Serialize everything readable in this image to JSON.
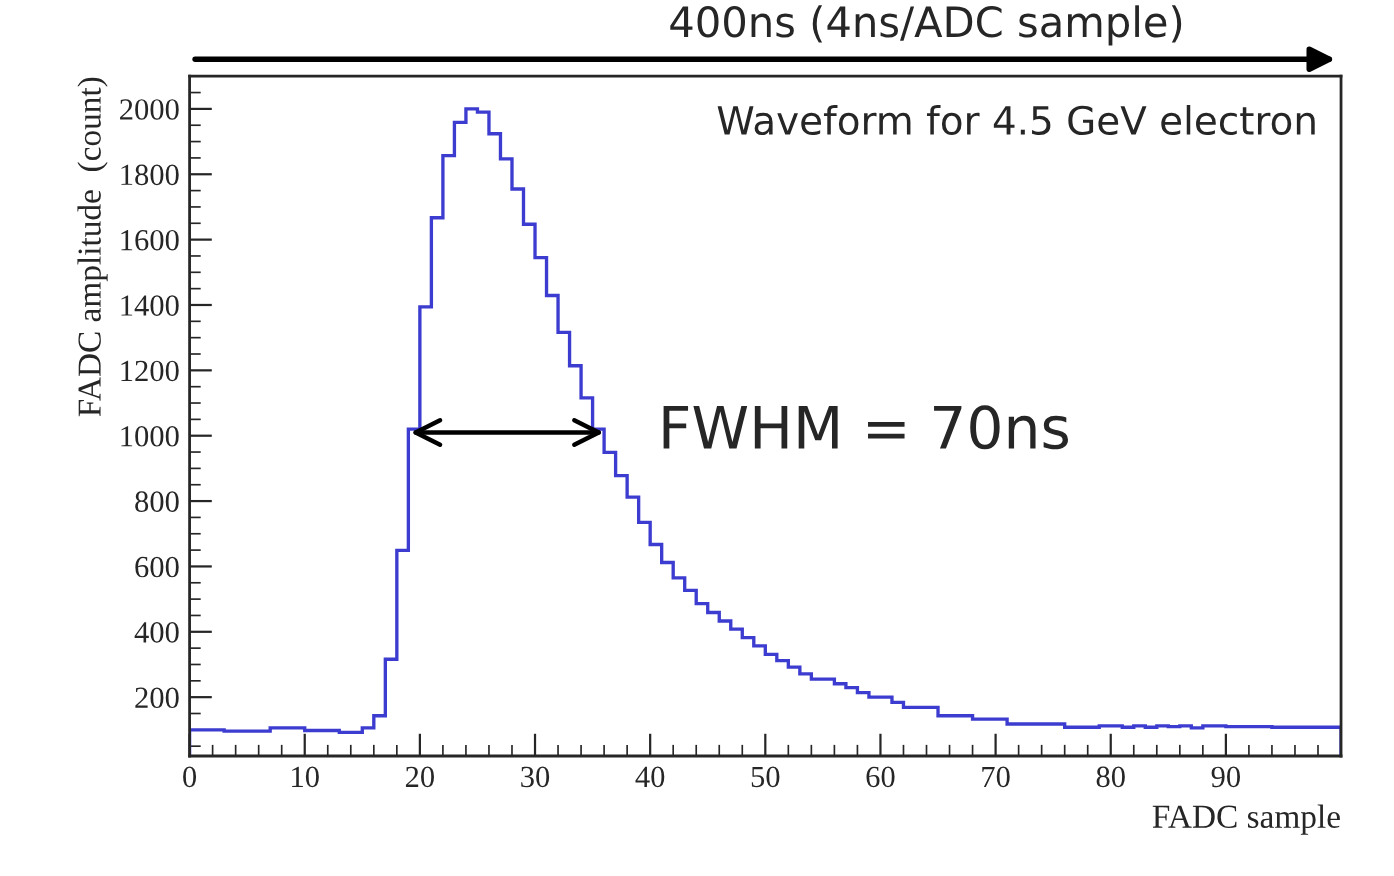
{
  "chart_data": {
    "type": "histogram",
    "xlabel": "FADC sample",
    "ylabel": "FADC amplitude  (count)",
    "annotations": [
      "400ns (4ns/ADC sample)",
      "Waveform for 4.5 GeV electron",
      {
        "text": "FWHM = 70ns",
        "x": 19.2,
        "y": 1010
      }
    ],
    "bins": [
      0,
      1,
      2,
      3,
      4,
      5,
      6,
      7,
      8,
      9,
      10,
      11,
      12,
      13,
      14,
      15,
      16,
      17,
      18,
      19,
      20,
      21,
      22,
      23,
      24,
      25,
      26,
      27,
      28,
      29,
      30,
      31,
      32,
      33,
      34,
      35,
      36,
      37,
      38,
      39,
      40,
      41,
      42,
      43,
      44,
      45,
      46,
      47,
      48,
      49,
      50,
      51,
      52,
      53,
      54,
      55,
      56,
      57,
      58,
      59,
      60,
      61,
      62,
      63,
      64,
      65,
      66,
      67,
      68,
      69,
      70,
      71,
      72,
      73,
      74,
      75,
      76,
      77,
      78,
      79,
      80,
      81,
      82,
      83,
      84,
      85,
      86,
      87,
      88,
      89,
      90,
      91,
      92,
      93,
      94,
      95,
      96,
      97,
      98,
      99,
      100
    ],
    "values": [
      100,
      100,
      100,
      96,
      96,
      96,
      96,
      106,
      106,
      106,
      98,
      98,
      98,
      92,
      92,
      106,
      143,
      316,
      649,
      1020,
      1394,
      1667,
      1857,
      1959,
      2000,
      1990,
      1924,
      1847,
      1755,
      1647,
      1545,
      1429,
      1316,
      1214,
      1116,
      1020,
      949,
      878,
      812,
      735,
      667,
      612,
      565,
      527,
      486,
      459,
      433,
      408,
      382,
      357,
      331,
      312,
      292,
      271,
      255,
      255,
      241,
      229,
      214,
      200,
      200,
      184,
      169,
      169,
      169,
      143,
      143,
      143,
      133,
      133,
      133,
      118,
      118,
      118,
      118,
      118,
      108,
      108,
      108,
      112,
      112,
      108,
      112,
      108,
      112,
      110,
      112,
      106,
      112,
      112,
      110,
      110,
      110,
      110,
      108,
      108,
      108,
      108,
      108,
      108
    ],
    "color": "#3c3cd0",
    "xlim": [
      0,
      100
    ],
    "ylim": [
      20,
      2100
    ],
    "xticks": [
      0,
      10,
      20,
      30,
      40,
      50,
      60,
      70,
      80,
      90
    ],
    "yticks": [
      200,
      400,
      600,
      800,
      1000,
      1200,
      1400,
      1600,
      1800,
      2000
    ],
    "grid": false
  }
}
